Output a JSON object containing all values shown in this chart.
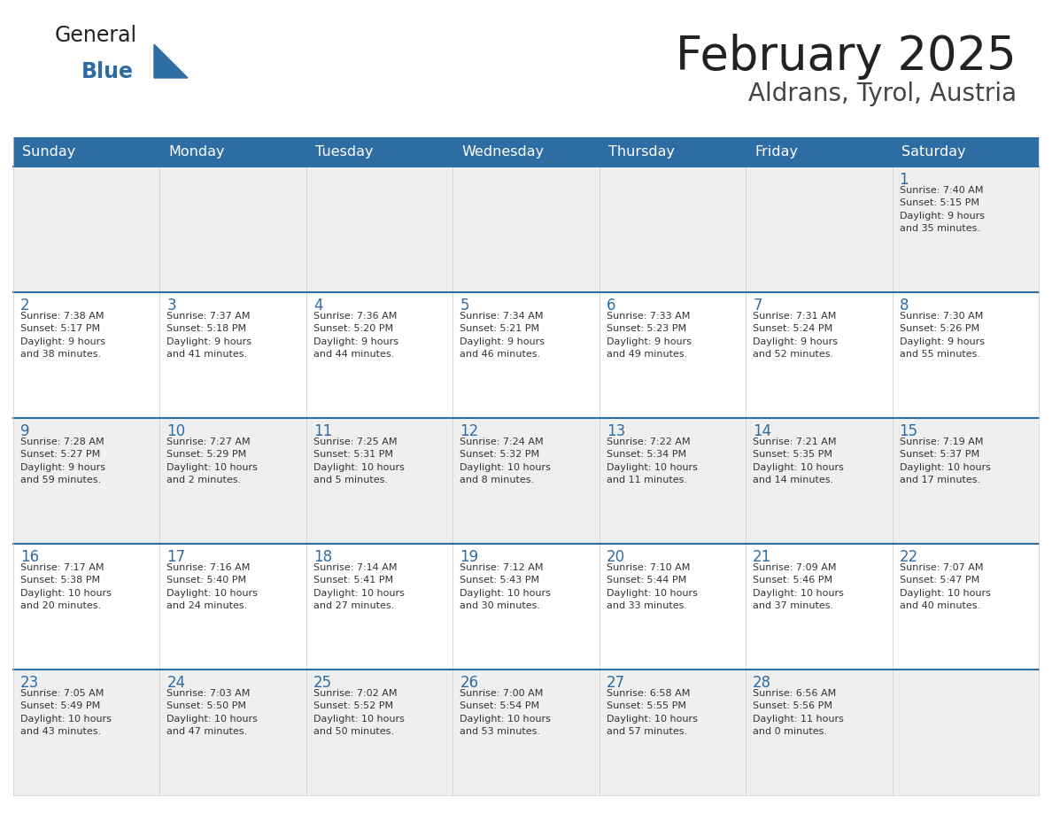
{
  "title": "February 2025",
  "subtitle": "Aldrans, Tyrol, Austria",
  "header_bg": "#2E6DA4",
  "header_text": "#FFFFFF",
  "cell_bg_odd": "#EFEFEF",
  "cell_bg_even": "#FFFFFF",
  "week_border_color": "#2E6DA4",
  "col_border_color": "#CCCCCC",
  "day_headers": [
    "Sunday",
    "Monday",
    "Tuesday",
    "Wednesday",
    "Thursday",
    "Friday",
    "Saturday"
  ],
  "title_color": "#222222",
  "subtitle_color": "#444444",
  "day_number_color": "#2E6DA4",
  "cell_text_color": "#333333",
  "logo_general_color": "#222222",
  "logo_blue_color": "#2E6DA4",
  "logo_triangle_color": "#2E6DA4",
  "weeks": [
    [
      {
        "day": null,
        "info": null
      },
      {
        "day": null,
        "info": null
      },
      {
        "day": null,
        "info": null
      },
      {
        "day": null,
        "info": null
      },
      {
        "day": null,
        "info": null
      },
      {
        "day": null,
        "info": null
      },
      {
        "day": 1,
        "info": "Sunrise: 7:40 AM\nSunset: 5:15 PM\nDaylight: 9 hours\nand 35 minutes."
      }
    ],
    [
      {
        "day": 2,
        "info": "Sunrise: 7:38 AM\nSunset: 5:17 PM\nDaylight: 9 hours\nand 38 minutes."
      },
      {
        "day": 3,
        "info": "Sunrise: 7:37 AM\nSunset: 5:18 PM\nDaylight: 9 hours\nand 41 minutes."
      },
      {
        "day": 4,
        "info": "Sunrise: 7:36 AM\nSunset: 5:20 PM\nDaylight: 9 hours\nand 44 minutes."
      },
      {
        "day": 5,
        "info": "Sunrise: 7:34 AM\nSunset: 5:21 PM\nDaylight: 9 hours\nand 46 minutes."
      },
      {
        "day": 6,
        "info": "Sunrise: 7:33 AM\nSunset: 5:23 PM\nDaylight: 9 hours\nand 49 minutes."
      },
      {
        "day": 7,
        "info": "Sunrise: 7:31 AM\nSunset: 5:24 PM\nDaylight: 9 hours\nand 52 minutes."
      },
      {
        "day": 8,
        "info": "Sunrise: 7:30 AM\nSunset: 5:26 PM\nDaylight: 9 hours\nand 55 minutes."
      }
    ],
    [
      {
        "day": 9,
        "info": "Sunrise: 7:28 AM\nSunset: 5:27 PM\nDaylight: 9 hours\nand 59 minutes."
      },
      {
        "day": 10,
        "info": "Sunrise: 7:27 AM\nSunset: 5:29 PM\nDaylight: 10 hours\nand 2 minutes."
      },
      {
        "day": 11,
        "info": "Sunrise: 7:25 AM\nSunset: 5:31 PM\nDaylight: 10 hours\nand 5 minutes."
      },
      {
        "day": 12,
        "info": "Sunrise: 7:24 AM\nSunset: 5:32 PM\nDaylight: 10 hours\nand 8 minutes."
      },
      {
        "day": 13,
        "info": "Sunrise: 7:22 AM\nSunset: 5:34 PM\nDaylight: 10 hours\nand 11 minutes."
      },
      {
        "day": 14,
        "info": "Sunrise: 7:21 AM\nSunset: 5:35 PM\nDaylight: 10 hours\nand 14 minutes."
      },
      {
        "day": 15,
        "info": "Sunrise: 7:19 AM\nSunset: 5:37 PM\nDaylight: 10 hours\nand 17 minutes."
      }
    ],
    [
      {
        "day": 16,
        "info": "Sunrise: 7:17 AM\nSunset: 5:38 PM\nDaylight: 10 hours\nand 20 minutes."
      },
      {
        "day": 17,
        "info": "Sunrise: 7:16 AM\nSunset: 5:40 PM\nDaylight: 10 hours\nand 24 minutes."
      },
      {
        "day": 18,
        "info": "Sunrise: 7:14 AM\nSunset: 5:41 PM\nDaylight: 10 hours\nand 27 minutes."
      },
      {
        "day": 19,
        "info": "Sunrise: 7:12 AM\nSunset: 5:43 PM\nDaylight: 10 hours\nand 30 minutes."
      },
      {
        "day": 20,
        "info": "Sunrise: 7:10 AM\nSunset: 5:44 PM\nDaylight: 10 hours\nand 33 minutes."
      },
      {
        "day": 21,
        "info": "Sunrise: 7:09 AM\nSunset: 5:46 PM\nDaylight: 10 hours\nand 37 minutes."
      },
      {
        "day": 22,
        "info": "Sunrise: 7:07 AM\nSunset: 5:47 PM\nDaylight: 10 hours\nand 40 minutes."
      }
    ],
    [
      {
        "day": 23,
        "info": "Sunrise: 7:05 AM\nSunset: 5:49 PM\nDaylight: 10 hours\nand 43 minutes."
      },
      {
        "day": 24,
        "info": "Sunrise: 7:03 AM\nSunset: 5:50 PM\nDaylight: 10 hours\nand 47 minutes."
      },
      {
        "day": 25,
        "info": "Sunrise: 7:02 AM\nSunset: 5:52 PM\nDaylight: 10 hours\nand 50 minutes."
      },
      {
        "day": 26,
        "info": "Sunrise: 7:00 AM\nSunset: 5:54 PM\nDaylight: 10 hours\nand 53 minutes."
      },
      {
        "day": 27,
        "info": "Sunrise: 6:58 AM\nSunset: 5:55 PM\nDaylight: 10 hours\nand 57 minutes."
      },
      {
        "day": 28,
        "info": "Sunrise: 6:56 AM\nSunset: 5:56 PM\nDaylight: 11 hours\nand 0 minutes."
      },
      {
        "day": null,
        "info": null
      }
    ]
  ]
}
